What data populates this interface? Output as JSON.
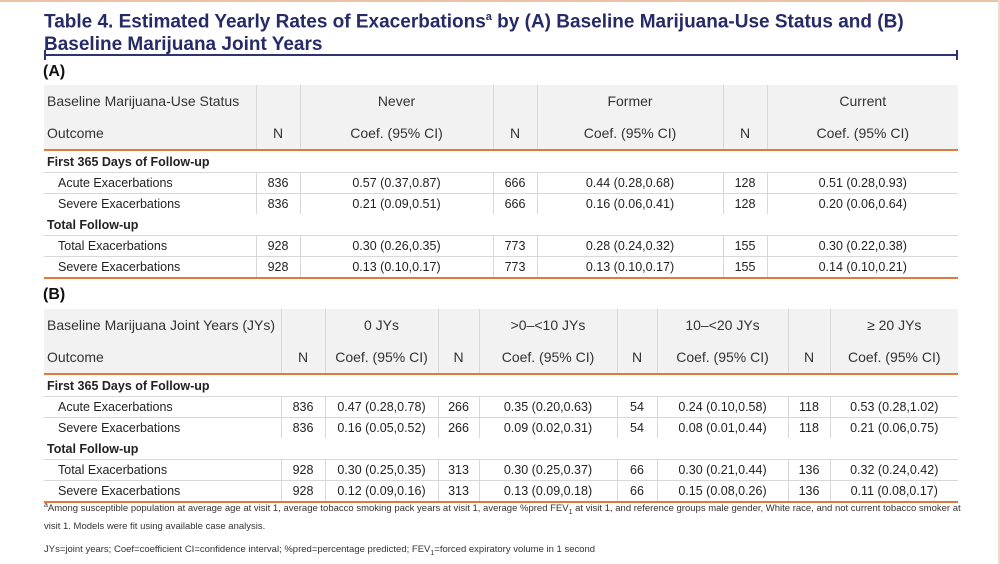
{
  "title_main": "Table 4. Estimated Yearly Rates of Exacerbations",
  "title_sup": "a",
  "title_rest": " by (A) Baseline Marijuana-Use Status and (B) Baseline Marijuana Joint Years",
  "tableA": {
    "label": "(A)",
    "header_label": "Baseline Marijuana-Use Status",
    "groups": [
      "Never",
      "Former",
      "Current"
    ],
    "outcome_label": "Outcome",
    "n_label": "N",
    "coef_label": "Coef. (95% CI)",
    "sections": [
      {
        "title": "First 365 Days of Follow-up",
        "rows": [
          {
            "label": "Acute Exacerbations",
            "cells": [
              "836",
              "0.57 (0.37,0.87)",
              "666",
              "0.44 (0.28,0.68)",
              "128",
              "0.51 (0.28,0.93)"
            ]
          },
          {
            "label": "Severe Exacerbations",
            "cells": [
              "836",
              "0.21 (0.09,0.51)",
              "666",
              "0.16 (0.06,0.41)",
              "128",
              "0.20 (0.06,0.64)"
            ]
          }
        ]
      },
      {
        "title": "Total Follow-up",
        "rows": [
          {
            "label": "Total Exacerbations",
            "cells": [
              "928",
              "0.30 (0.26,0.35)",
              "773",
              "0.28 (0.24,0.32)",
              "155",
              "0.30 (0.22,0.38)"
            ]
          },
          {
            "label": "Severe Exacerbations",
            "cells": [
              "928",
              "0.13 (0.10,0.17)",
              "773",
              "0.13 (0.10,0.17)",
              "155",
              "0.14 (0.10,0.21)"
            ]
          }
        ]
      }
    ]
  },
  "tableB": {
    "label": "(B)",
    "header_label": "Baseline Marijuana Joint Years (JYs)",
    "groups": [
      "0 JYs",
      ">0–<10 JYs",
      "10–<20 JYs",
      "≥ 20 JYs"
    ],
    "outcome_label": "Outcome",
    "n_label": "N",
    "coef_label": "Coef. (95% CI)",
    "sections": [
      {
        "title": "First 365 Days of Follow-up",
        "rows": [
          {
            "label": "Acute Exacerbations",
            "cells": [
              "836",
              "0.47 (0.28,0.78)",
              "266",
              "0.35 (0.20,0.63)",
              "54",
              "0.24 (0.10,0.58)",
              "118",
              "0.53 (0.28,1.02)"
            ]
          },
          {
            "label": "Severe Exacerbations",
            "cells": [
              "836",
              "0.16 (0.05,0.52)",
              "266",
              "0.09 (0.02,0.31)",
              "54",
              "0.08 (0.01,0.44)",
              "118",
              "0.21 (0.06,0.75)"
            ]
          }
        ]
      },
      {
        "title": "Total Follow-up",
        "rows": [
          {
            "label": "Total Exacerbations",
            "cells": [
              "928",
              "0.30 (0.25,0.35)",
              "313",
              "0.30 (0.25,0.37)",
              "66",
              "0.30 (0.21,0.44)",
              "136",
              "0.32 (0.24,0.42)"
            ]
          },
          {
            "label": "Severe Exacerbations",
            "cells": [
              "928",
              "0.12 (0.09,0.16)",
              "313",
              "0.13 (0.09,0.18)",
              "66",
              "0.15 (0.08,0.26)",
              "136",
              "0.11 (0.08,0.17)"
            ]
          }
        ]
      }
    ]
  },
  "footnote": {
    "sup": "a",
    "text_1": "Among susceptible population at average age at visit 1, average tobacco smoking pack years at visit 1, average %pred FEV",
    "sub_1": "1",
    "text_2": " at visit 1, and reference groups male gender, White race, and not current tobacco smoker at visit 1. Models were fit using available case analysis.",
    "abbrev_1": "JYs=joint years; Coef=coefficient CI=confidence interval; %pred=percentage predicted; FEV",
    "abbrev_sub": "1",
    "abbrev_2": "=forced expiratory volume in 1 second"
  },
  "colors": {
    "title": "#262a66",
    "rule": "#2b3575",
    "accent": "#e1793a",
    "header_bg": "#f2f2f2"
  }
}
